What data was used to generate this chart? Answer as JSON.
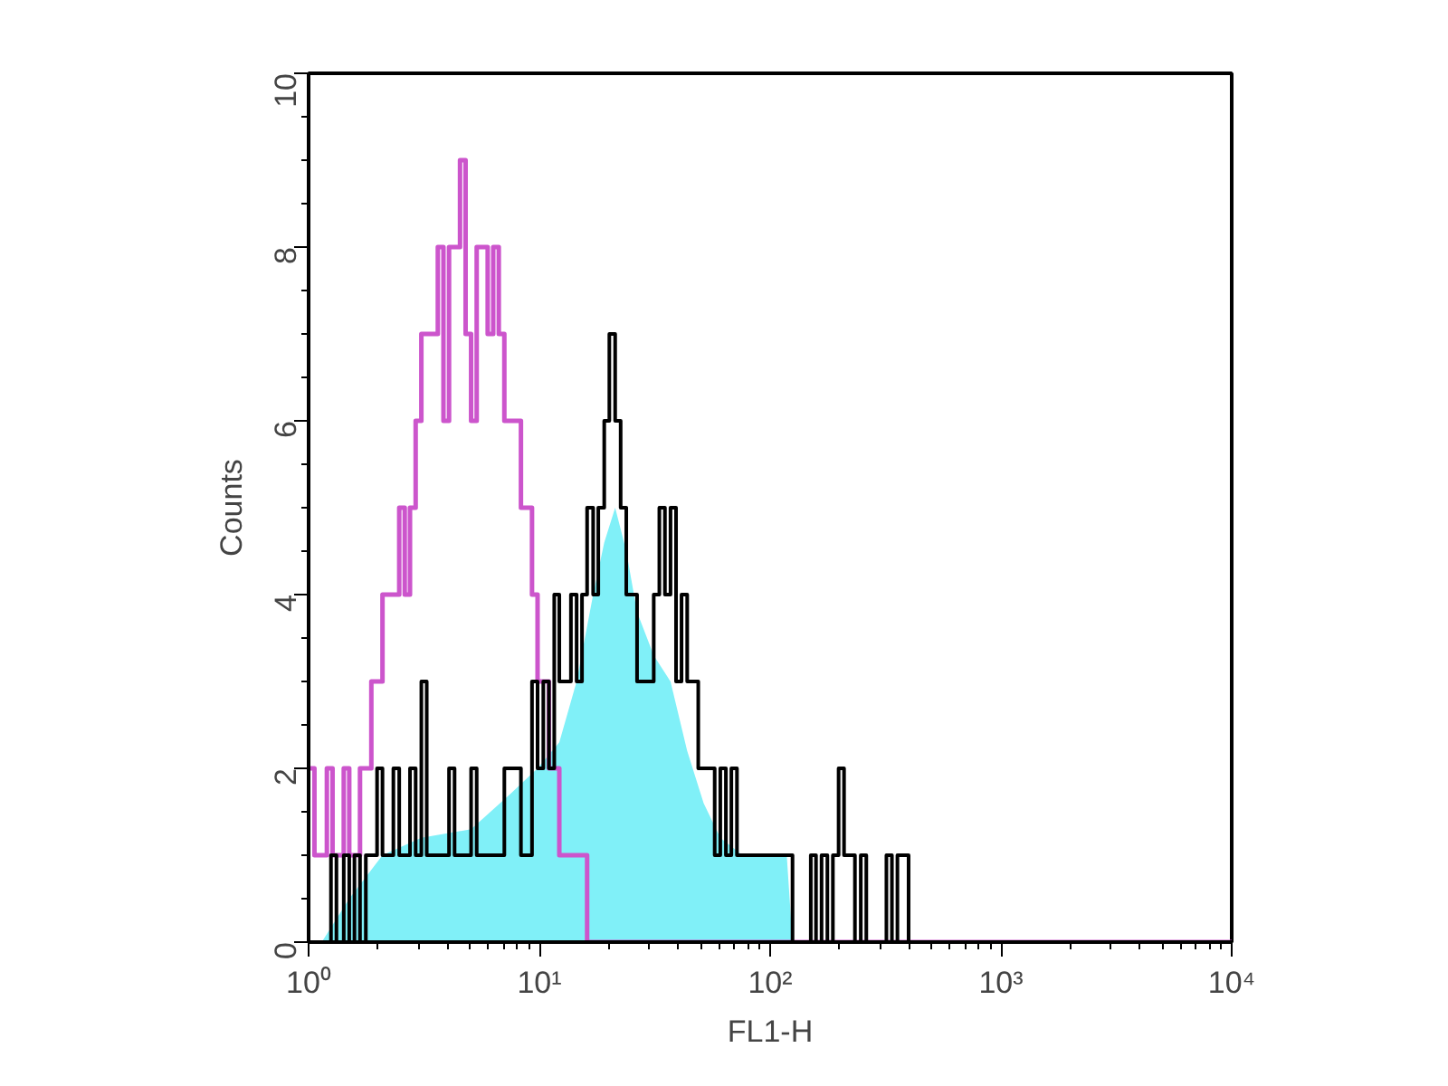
{
  "chart_data": {
    "type": "step",
    "xlabel": "FL1-H",
    "ylabel": "Counts",
    "log": "x",
    "grid": false,
    "xlim": [
      1,
      10000
    ],
    "ylim": [
      0,
      10
    ],
    "xticks": [
      {
        "value": 1,
        "label": "10⁰"
      },
      {
        "value": 10,
        "label": "10¹"
      },
      {
        "value": 100,
        "label": "10²"
      },
      {
        "value": 1000,
        "label": "10³"
      },
      {
        "value": 10000,
        "label": "10⁴"
      }
    ],
    "yticks": [
      0,
      2,
      4,
      6,
      8,
      10
    ],
    "series": [
      {
        "type": "area",
        "color": "#80f0f8",
        "x": [
          1.14,
          1.5,
          2.09,
          3.08,
          5.06,
          7.45,
          9.82,
          12.2,
          14.5,
          17.1,
          19.1,
          21.3,
          23.8,
          26.5,
          31.3,
          37.0,
          43.7,
          51.5,
          60.8,
          75.9,
          100,
          118,
          125
        ],
        "values": [
          0,
          0.5,
          1,
          1.2,
          1.3,
          1.7,
          2,
          2.3,
          3,
          4,
          4.6,
          5,
          4.5,
          3.8,
          3.3,
          3,
          2.2,
          1.6,
          1.2,
          1,
          1,
          1,
          0
        ]
      },
      {
        "color": "#cc55cc",
        "x": [
          1.0,
          1.06,
          1.14,
          1.2,
          1.27,
          1.34,
          1.42,
          1.5,
          1.58,
          1.67,
          1.77,
          1.87,
          1.98,
          2.09,
          2.21,
          2.33,
          2.47,
          2.61,
          2.75,
          2.91,
          3.08,
          3.25,
          3.44,
          3.63,
          3.84,
          4.06,
          4.29,
          4.53,
          4.79,
          5.06,
          5.35,
          5.65,
          5.97,
          6.31,
          6.67,
          7.05,
          7.45,
          7.87,
          8.32,
          8.79,
          9.29,
          9.82,
          10.4,
          11.0,
          11.6,
          12.2,
          12.9,
          13.7,
          14.5,
          15.3,
          16.1,
          10000
        ],
        "values": [
          2,
          1,
          1,
          2,
          1,
          1,
          2,
          1,
          1,
          2,
          2,
          3,
          3,
          4,
          4,
          4,
          5,
          4,
          5,
          6,
          7,
          7,
          7,
          8,
          6,
          8,
          8,
          9,
          7,
          6,
          8,
          8,
          7,
          8,
          7,
          6,
          6,
          6,
          5,
          5,
          4,
          3,
          3,
          2,
          2,
          1,
          1,
          1,
          1,
          1,
          0,
          0
        ]
      },
      {
        "color": "#000000",
        "x": [
          1.14,
          1.25,
          1.32,
          1.42,
          1.5,
          1.58,
          1.67,
          1.77,
          1.87,
          1.98,
          2.09,
          2.21,
          2.33,
          2.47,
          2.61,
          2.75,
          2.91,
          3.08,
          3.25,
          3.44,
          3.63,
          3.84,
          4.06,
          4.29,
          4.53,
          4.79,
          5.06,
          5.35,
          5.65,
          5.97,
          6.31,
          6.67,
          7.05,
          7.45,
          7.87,
          8.32,
          8.79,
          9.29,
          9.82,
          10.4,
          11.0,
          11.6,
          12.2,
          12.9,
          13.7,
          14.5,
          15.3,
          16.1,
          17.1,
          18.0,
          19.1,
          20.1,
          21.3,
          22.5,
          23.8,
          25.1,
          26.5,
          28.1,
          29.6,
          31.3,
          33.1,
          35.0,
          37.0,
          39.1,
          41.3,
          43.7,
          46.1,
          48.8,
          51.5,
          54.5,
          57.5,
          60.8,
          64.3,
          67.9,
          71.8,
          75.9,
          80.2,
          84.7,
          89.5,
          94.6,
          100,
          106,
          112,
          118,
          125,
          137,
          150,
          158,
          167,
          177,
          187,
          198,
          209,
          221,
          233,
          247,
          261,
          302,
          319,
          337,
          356,
          377,
          398
        ],
        "values": [
          0,
          1,
          0,
          1,
          0,
          1,
          0,
          1,
          1,
          2,
          1,
          1,
          2,
          1,
          1,
          2,
          1,
          3,
          1,
          1,
          1,
          1,
          2,
          1,
          1,
          1,
          2,
          1,
          1,
          1,
          1,
          1,
          2,
          2,
          2,
          1,
          1,
          3,
          2,
          3,
          2,
          4,
          3,
          3,
          4,
          3,
          4,
          5,
          4,
          5,
          6,
          7,
          6,
          5,
          4,
          4,
          3,
          3,
          3,
          4,
          5,
          4,
          5,
          3,
          4,
          3,
          3,
          2,
          2,
          2,
          1,
          2,
          1,
          2,
          1,
          1,
          1,
          1,
          1,
          1,
          1,
          1,
          1,
          1,
          0,
          0,
          1,
          0,
          1,
          0,
          1,
          2,
          1,
          1,
          0,
          1,
          0,
          0,
          1,
          0,
          1,
          1,
          0
        ]
      }
    ]
  }
}
